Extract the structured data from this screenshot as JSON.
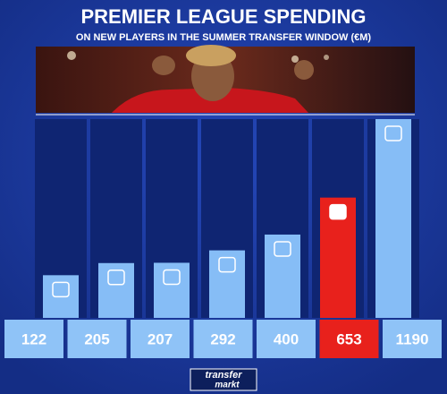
{
  "chart_data": {
    "type": "bar",
    "title": "PREMIER LEAGUE SPENDING",
    "subtitle": "ON NEW PLAYERS IN THE SUMMER TRANSFER WINDOW (€M)",
    "values": [
      122,
      205,
      207,
      292,
      400,
      653,
      1190
    ],
    "colors": [
      "#86bdf6",
      "#86bdf6",
      "#86bdf6",
      "#86bdf6",
      "#86bdf6",
      "#e8211c",
      "#86bdf6"
    ],
    "ylim": [
      -170,
      1190
    ],
    "logo": {
      "top": "transfer",
      "bottom": "markt"
    }
  }
}
